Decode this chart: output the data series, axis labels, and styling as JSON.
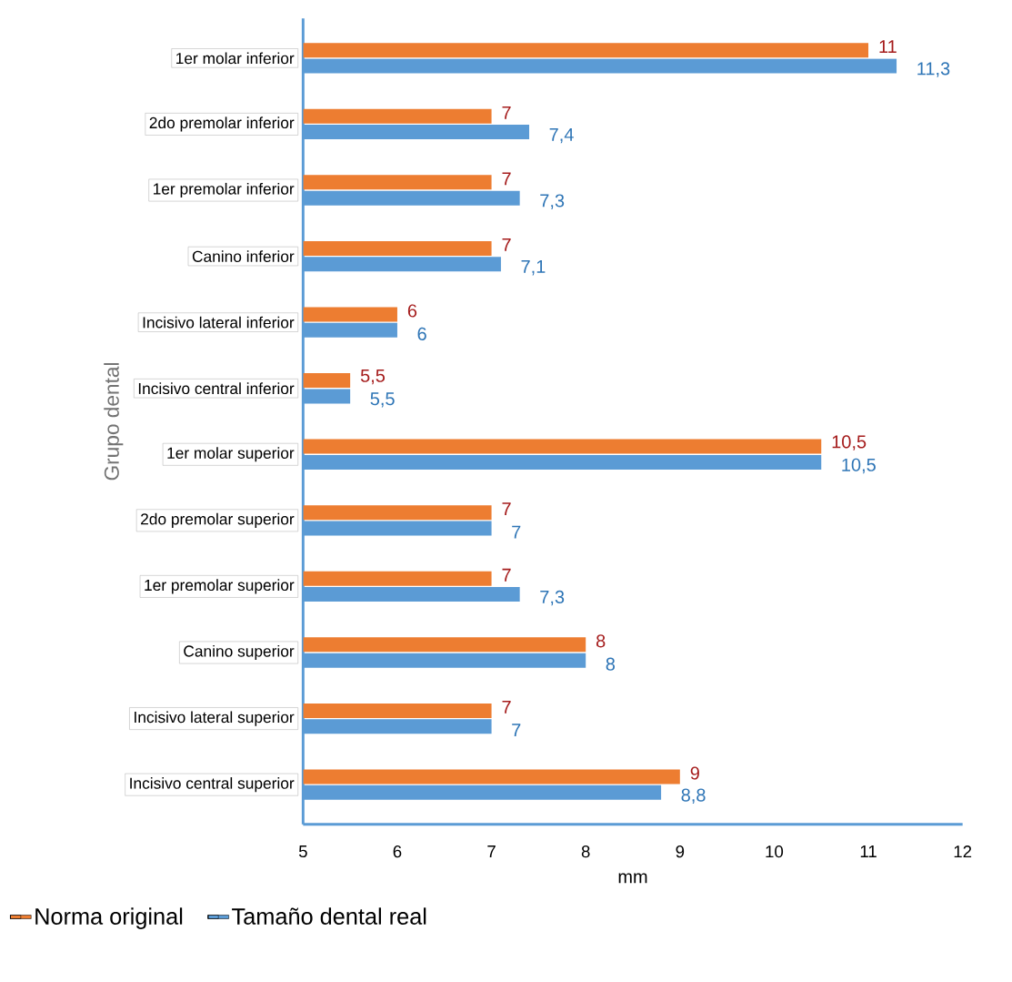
{
  "chart_data": {
    "type": "bar",
    "orientation": "horizontal",
    "xlabel": "mm",
    "ylabel": "Grupo dental",
    "categories": [
      "1er molar inferior",
      "2do premolar inferior",
      "1er premolar inferior",
      "Canino inferior",
      "Incisivo lateral inferior",
      "Incisivo central inferior",
      "1er molar superior",
      "2do premolar superior",
      "1er premolar superior",
      "Canino superior",
      "Incisivo lateral superior",
      "Incisivo central superior"
    ],
    "series": [
      {
        "name": "Norma original",
        "color": "#ed7d31",
        "values": [
          11,
          7,
          7,
          7,
          6,
          5.5,
          10.5,
          7,
          7,
          8,
          7,
          9
        ],
        "value_labels": [
          "11",
          "7",
          "7",
          "7",
          "6",
          "5,5",
          "10,5",
          "7",
          "7",
          "8",
          "7",
          "9"
        ]
      },
      {
        "name": "Tamaño dental real",
        "color": "#5b9bd5",
        "values": [
          11.3,
          7.4,
          7.3,
          7.1,
          6,
          5.5,
          10.5,
          7,
          7.3,
          8,
          7,
          8.8
        ],
        "value_labels": [
          "11,3",
          "7,4",
          "7,3",
          "7,1",
          "6",
          "5,5",
          "10,5",
          "7",
          "7,3",
          "8",
          "7",
          "8,8"
        ]
      }
    ],
    "xlim": [
      5,
      12
    ],
    "xticks": [
      5,
      6,
      7,
      8,
      9,
      10,
      11,
      12
    ],
    "legend": "bottom",
    "grid": false
  }
}
